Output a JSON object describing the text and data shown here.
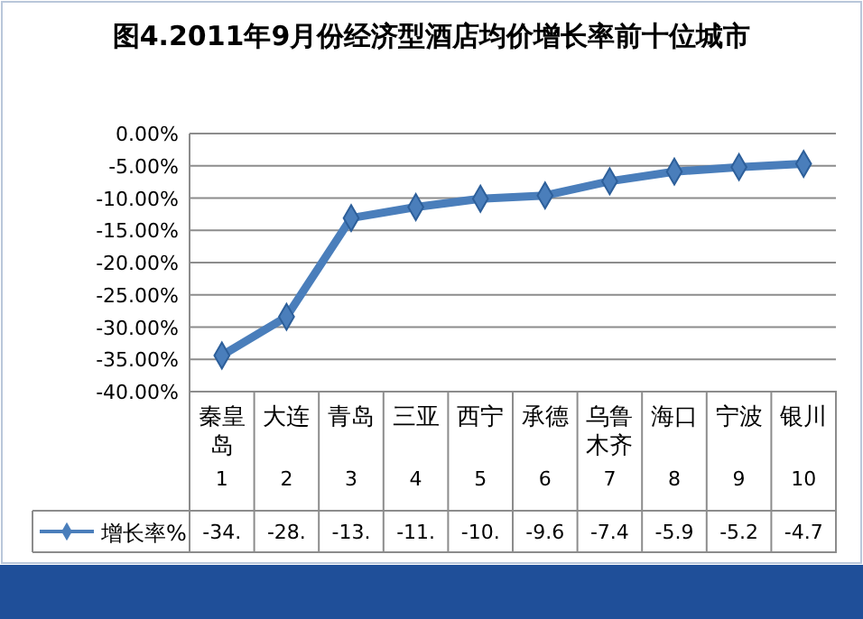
{
  "chart_data": {
    "type": "line",
    "title": "图4.2011年9月份经济型酒店均价增长率前十位城市",
    "categories": [
      "秦皇岛 1",
      "大连 2",
      "青岛 3",
      "三亚 4",
      "西宁 5",
      "承德 6",
      "乌鲁木齐 7",
      "海口 8",
      "宁波 9",
      "银川 10"
    ],
    "series": [
      {
        "name": "增长率%",
        "color": "#4a7ebb",
        "values": [
          -34.4,
          -28.4,
          -13.1,
          -11.4,
          -10.1,
          -9.6,
          -7.4,
          -5.9,
          -5.2,
          -4.7
        ],
        "value_labels": [
          "-34.",
          "-28.",
          "-13.",
          "-11.",
          "-10.",
          "-9.6",
          "-7.4",
          "-5.9",
          "-5.2",
          "-4.7"
        ]
      }
    ],
    "ylim": [
      -40,
      0
    ],
    "yticks": [
      {
        "value": 0,
        "label": "0.00%"
      },
      {
        "value": -5,
        "label": "-5.00%"
      },
      {
        "value": -10,
        "label": "-10.00%"
      },
      {
        "value": -15,
        "label": "-15.00%"
      },
      {
        "value": -20,
        "label": "-20.00%"
      },
      {
        "value": -25,
        "label": "-25.00%"
      },
      {
        "value": -30,
        "label": "-30.00%"
      },
      {
        "value": -35,
        "label": "-35.00%"
      },
      {
        "value": -40,
        "label": "-40.00%"
      }
    ],
    "grid": "y",
    "marker": "diamond",
    "line_style": "solid",
    "legend": "bottom left"
  }
}
